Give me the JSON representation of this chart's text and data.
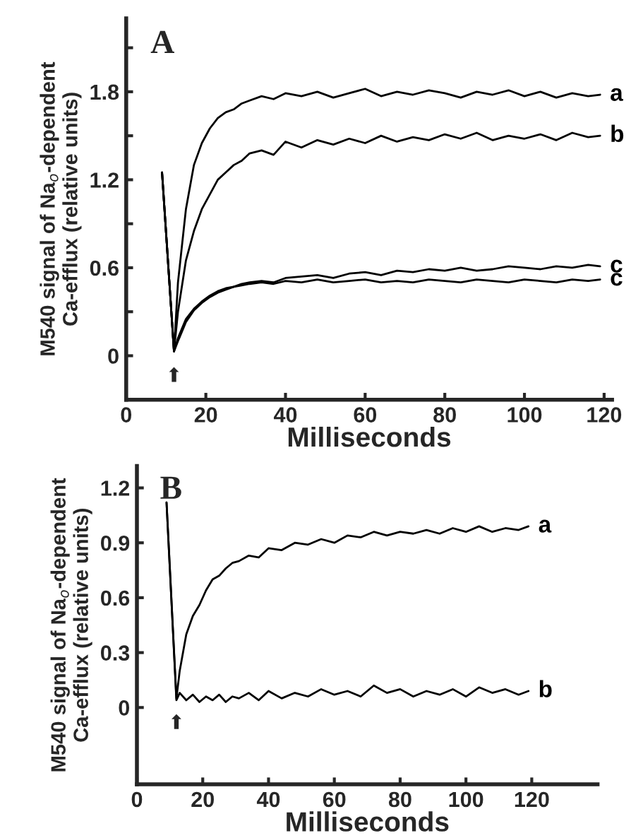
{
  "chart_data": [
    {
      "type": "line",
      "title": "A",
      "xlabel": "Milliseconds",
      "ylabel": "M540 signal of Na$_{o}$-dependent\nCa-efflux (relative units)",
      "xlim": [
        0,
        122
      ],
      "ylim": [
        -0.3,
        2.3
      ],
      "xticks": [
        0,
        20,
        40,
        60,
        80,
        100,
        120
      ],
      "yticks": [
        0,
        {
          "value": 0.3,
          "label": null
        },
        0.6,
        {
          "value": 0.9,
          "label": null
        },
        1.2,
        {
          "value": 1.5,
          "label": null
        },
        1.8,
        {
          "value": 2.1,
          "label": null
        }
      ],
      "grid": false,
      "legend": false,
      "annotations": [
        "⬆"
      ],
      "series": [
        {
          "name": "a",
          "color": "#000000",
          "x": [
            9,
            12,
            13,
            15,
            17,
            19,
            21,
            23,
            25,
            27,
            29,
            31,
            34,
            37,
            40,
            44,
            48,
            52,
            56,
            60,
            64,
            68,
            72,
            76,
            80,
            84,
            88,
            92,
            96,
            100,
            104,
            108,
            112,
            116,
            119
          ],
          "values": [
            1.25,
            0.03,
            0.5,
            1.0,
            1.3,
            1.45,
            1.55,
            1.62,
            1.66,
            1.68,
            1.72,
            1.74,
            1.77,
            1.75,
            1.79,
            1.77,
            1.8,
            1.76,
            1.79,
            1.82,
            1.77,
            1.8,
            1.78,
            1.81,
            1.79,
            1.76,
            1.8,
            1.78,
            1.81,
            1.77,
            1.8,
            1.76,
            1.79,
            1.77,
            1.78
          ]
        },
        {
          "name": "b",
          "color": "#000000",
          "x": [
            9,
            12,
            13,
            15,
            17,
            19,
            21,
            23,
            25,
            27,
            29,
            31,
            34,
            37,
            40,
            44,
            48,
            52,
            56,
            60,
            64,
            68,
            72,
            76,
            80,
            84,
            88,
            92,
            96,
            100,
            104,
            108,
            112,
            116,
            119
          ],
          "values": [
            1.25,
            0.03,
            0.3,
            0.65,
            0.85,
            1.0,
            1.1,
            1.2,
            1.25,
            1.3,
            1.33,
            1.38,
            1.4,
            1.37,
            1.46,
            1.42,
            1.47,
            1.44,
            1.48,
            1.45,
            1.5,
            1.46,
            1.49,
            1.47,
            1.51,
            1.48,
            1.52,
            1.47,
            1.5,
            1.48,
            1.51,
            1.47,
            1.52,
            1.49,
            1.5
          ]
        },
        {
          "name": "c",
          "color": "#000000",
          "x": [
            9,
            12,
            13,
            15,
            17,
            19,
            21,
            23,
            25,
            27,
            29,
            31,
            34,
            37,
            40,
            44,
            48,
            52,
            56,
            60,
            64,
            68,
            72,
            76,
            80,
            84,
            88,
            92,
            96,
            100,
            104,
            108,
            112,
            116,
            119
          ],
          "values": [
            1.25,
            0.03,
            0.12,
            0.25,
            0.32,
            0.37,
            0.41,
            0.44,
            0.46,
            0.47,
            0.49,
            0.5,
            0.51,
            0.5,
            0.53,
            0.54,
            0.55,
            0.53,
            0.56,
            0.57,
            0.55,
            0.58,
            0.57,
            0.59,
            0.58,
            0.6,
            0.58,
            0.59,
            0.61,
            0.6,
            0.59,
            0.61,
            0.6,
            0.62,
            0.61
          ]
        },
        {
          "name": "c",
          "color": "#000000",
          "x": [
            9,
            12,
            13,
            15,
            17,
            19,
            21,
            23,
            25,
            27,
            29,
            31,
            34,
            37,
            40,
            44,
            48,
            52,
            56,
            60,
            64,
            68,
            72,
            76,
            80,
            84,
            88,
            92,
            96,
            100,
            104,
            108,
            112,
            116,
            119
          ],
          "values": [
            1.25,
            0.03,
            0.1,
            0.23,
            0.31,
            0.36,
            0.4,
            0.43,
            0.45,
            0.47,
            0.48,
            0.49,
            0.5,
            0.49,
            0.51,
            0.5,
            0.52,
            0.5,
            0.51,
            0.52,
            0.5,
            0.51,
            0.5,
            0.52,
            0.51,
            0.5,
            0.52,
            0.51,
            0.5,
            0.52,
            0.51,
            0.5,
            0.52,
            0.51,
            0.52
          ]
        }
      ]
    },
    {
      "type": "line",
      "title": "B",
      "xlabel": "Milliseconds",
      "ylabel": "M540 signal of Na$_{o}$-dependent\nCa-efflux (relative units)",
      "xlim": [
        0,
        140
      ],
      "ylim": [
        -0.42,
        1.32
      ],
      "xticks": [
        0,
        20,
        40,
        60,
        80,
        100,
        120
      ],
      "yticks": [
        0,
        0.3,
        0.6,
        0.9,
        1.2
      ],
      "grid": false,
      "legend": false,
      "annotations": [
        "⬆"
      ],
      "series": [
        {
          "name": "a",
          "color": "#000000",
          "x": [
            9,
            12,
            13,
            15,
            17,
            19,
            21,
            23,
            25,
            27,
            29,
            31,
            34,
            37,
            40,
            44,
            48,
            52,
            56,
            60,
            64,
            68,
            72,
            76,
            80,
            84,
            88,
            92,
            96,
            100,
            104,
            108,
            112,
            116,
            119
          ],
          "values": [
            1.12,
            0.05,
            0.2,
            0.4,
            0.5,
            0.56,
            0.64,
            0.7,
            0.72,
            0.76,
            0.79,
            0.8,
            0.83,
            0.82,
            0.87,
            0.86,
            0.9,
            0.89,
            0.92,
            0.9,
            0.94,
            0.93,
            0.96,
            0.94,
            0.96,
            0.95,
            0.97,
            0.95,
            0.98,
            0.96,
            0.99,
            0.96,
            0.98,
            0.97,
            0.99
          ]
        },
        {
          "name": "b",
          "color": "#000000",
          "x": [
            9,
            12,
            13,
            15,
            17,
            19,
            21,
            23,
            25,
            27,
            29,
            31,
            34,
            37,
            40,
            44,
            48,
            52,
            56,
            60,
            64,
            68,
            72,
            76,
            80,
            84,
            88,
            92,
            96,
            100,
            104,
            108,
            112,
            116,
            119
          ],
          "values": [
            1.12,
            0.04,
            0.08,
            0.04,
            0.07,
            0.03,
            0.06,
            0.04,
            0.07,
            0.03,
            0.06,
            0.05,
            0.08,
            0.04,
            0.09,
            0.05,
            0.08,
            0.06,
            0.1,
            0.07,
            0.09,
            0.06,
            0.12,
            0.08,
            0.1,
            0.06,
            0.09,
            0.07,
            0.1,
            0.06,
            0.11,
            0.08,
            0.1,
            0.07,
            0.09
          ]
        }
      ]
    }
  ]
}
